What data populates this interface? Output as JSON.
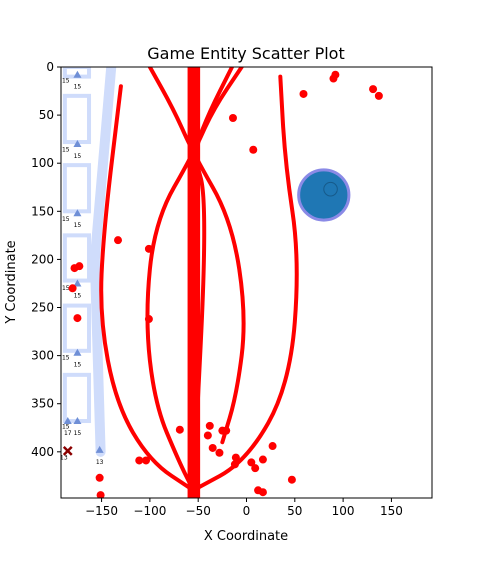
{
  "chart_data": {
    "type": "scatter",
    "title": "Game Entity Scatter Plot",
    "xlabel": "X Coordinate",
    "ylabel": "Y Coordinate",
    "xlim": [
      -192,
      192
    ],
    "ylim": [
      448,
      0
    ],
    "y_inverted": true,
    "grid": false,
    "xticks": [
      -150,
      -100,
      -50,
      0,
      50,
      100,
      150
    ],
    "yticks": [
      0,
      50,
      100,
      150,
      200,
      250,
      300,
      350,
      400
    ],
    "colors": {
      "points": "#ff0000",
      "curves": "#ff0000",
      "ghost_path": "#cfdcfb",
      "big_circle_fill": "#1f77b4",
      "big_circle_ring": "#8a8ae6",
      "marker_x": "#8b0000",
      "platform_marker": "#6f8fd6"
    },
    "red_points": [
      {
        "x": 59,
        "y": 28
      },
      {
        "x": 90,
        "y": 12
      },
      {
        "x": 92,
        "y": 8
      },
      {
        "x": 131,
        "y": 23
      },
      {
        "x": 137,
        "y": 30
      },
      {
        "x": -14,
        "y": 53
      },
      {
        "x": 7,
        "y": 86
      },
      {
        "x": -133,
        "y": 180
      },
      {
        "x": -101,
        "y": 189
      },
      {
        "x": -178,
        "y": 209
      },
      {
        "x": -173,
        "y": 207
      },
      {
        "x": -180,
        "y": 230
      },
      {
        "x": -175,
        "y": 261
      },
      {
        "x": -101,
        "y": 262
      },
      {
        "x": -69,
        "y": 377
      },
      {
        "x": -40,
        "y": 383
      },
      {
        "x": -38,
        "y": 373
      },
      {
        "x": -21,
        "y": 378
      },
      {
        "x": -25,
        "y": 378
      },
      {
        "x": -35,
        "y": 396
      },
      {
        "x": -56,
        "y": 396
      },
      {
        "x": -28,
        "y": 401
      },
      {
        "x": -11,
        "y": 406
      },
      {
        "x": -12,
        "y": 413
      },
      {
        "x": 5,
        "y": 411
      },
      {
        "x": 9,
        "y": 417
      },
      {
        "x": 17,
        "y": 408
      },
      {
        "x": 27,
        "y": 394
      },
      {
        "x": -111,
        "y": 409
      },
      {
        "x": -104,
        "y": 409
      },
      {
        "x": -152,
        "y": 427
      },
      {
        "x": -151,
        "y": 445
      },
      {
        "x": 47,
        "y": 429
      },
      {
        "x": 12,
        "y": 440
      },
      {
        "x": 17,
        "y": 442
      }
    ],
    "red_curves": [
      {
        "points": [
          [
            -5,
            0
          ],
          [
            -35,
            45
          ],
          [
            -55,
            90
          ],
          [
            -95,
            160
          ],
          [
            -105,
            260
          ],
          [
            -95,
            350
          ],
          [
            -70,
            410
          ],
          [
            -55,
            440
          ]
        ]
      },
      {
        "points": [
          [
            -100,
            0
          ],
          [
            -75,
            45
          ],
          [
            -55,
            90
          ],
          [
            -15,
            160
          ],
          [
            0,
            260
          ],
          [
            -10,
            340
          ],
          [
            -25,
            390
          ]
        ]
      },
      {
        "points": [
          [
            -15,
            0
          ],
          [
            -40,
            50
          ],
          [
            -55,
            90
          ],
          [
            -40,
            140
          ],
          [
            -55,
            440
          ]
        ]
      },
      {
        "points": [
          [
            -130,
            20
          ],
          [
            -148,
            170
          ],
          [
            -152,
            260
          ],
          [
            -135,
            350
          ],
          [
            -100,
            410
          ],
          [
            -55,
            440
          ]
        ]
      },
      {
        "points": [
          [
            35,
            10
          ],
          [
            40,
            100
          ],
          [
            55,
            200
          ],
          [
            45,
            330
          ],
          [
            0,
            410
          ],
          [
            -55,
            440
          ]
        ]
      }
    ],
    "red_bar": {
      "x_from": -61,
      "x_to": -48,
      "y_from": 0,
      "y_to": 448
    },
    "ghost_path": [
      [
        -140,
        0
      ],
      [
        -157,
        200
      ],
      [
        -151,
        400
      ]
    ],
    "ghost_blocks": [
      {
        "x_from": -188,
        "x_to": -163,
        "y_from": 0,
        "y_to": 10,
        "label": "15"
      },
      {
        "x_from": -188,
        "x_to": -163,
        "y_from": 30,
        "y_to": 78,
        "label": "15"
      },
      {
        "x_from": -188,
        "x_to": -163,
        "y_from": 102,
        "y_to": 150,
        "label": "15"
      },
      {
        "x_from": -188,
        "x_to": -163,
        "y_from": 175,
        "y_to": 222,
        "label": "15"
      },
      {
        "x_from": -188,
        "x_to": -163,
        "y_from": 248,
        "y_to": 295,
        "label": "15"
      },
      {
        "x_from": -188,
        "x_to": -163,
        "y_from": 320,
        "y_to": 368,
        "label": "15"
      }
    ],
    "platform_markers": [
      {
        "x": -175,
        "y": 8,
        "label": "15"
      },
      {
        "x": -175,
        "y": 80,
        "label": "15"
      },
      {
        "x": -175,
        "y": 152,
        "label": "15"
      },
      {
        "x": -175,
        "y": 225,
        "label": "15"
      },
      {
        "x": -175,
        "y": 297,
        "label": "15"
      },
      {
        "x": -175,
        "y": 368,
        "label": "15"
      },
      {
        "x": -185,
        "y": 368,
        "label": "17"
      },
      {
        "x": -152,
        "y": 398,
        "label": "13"
      }
    ],
    "small_labels": [
      {
        "x": -191,
        "y": 16,
        "text": "15"
      },
      {
        "x": -191,
        "y": 88,
        "text": "15"
      },
      {
        "x": -191,
        "y": 160,
        "text": "15"
      },
      {
        "x": -191,
        "y": 232,
        "text": "15"
      },
      {
        "x": -191,
        "y": 304,
        "text": "15"
      },
      {
        "x": -191,
        "y": 376,
        "text": "15"
      },
      {
        "x": -193,
        "y": 408,
        "text": "13"
      }
    ],
    "x_marker": {
      "x": -185,
      "y": 399
    },
    "big_circle": {
      "x": 80,
      "y": 133,
      "r_data": 26
    },
    "small_circle": {
      "x": 87,
      "y": 127,
      "r_data": 7
    }
  }
}
